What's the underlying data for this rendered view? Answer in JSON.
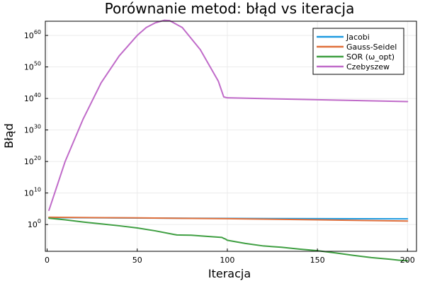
{
  "chart_data": {
    "type": "line",
    "title": "Porównanie metod: błąd vs iteracja",
    "xlabel": "Iteracja",
    "ylabel": "Błąd",
    "xlim": [
      -1,
      205
    ],
    "ylim_log10": [
      -8.5,
      64.5
    ],
    "y_scale": "log10",
    "grid": true,
    "legend_position": "top-right",
    "x_ticks": [
      0,
      50,
      100,
      150,
      200
    ],
    "y_ticks_exponents": [
      0,
      10,
      20,
      30,
      40,
      50,
      60
    ],
    "y_tick_base": "10",
    "series": [
      {
        "name": "Jacobi",
        "color": "#1f9be0",
        "points": [
          [
            1,
            2.2
          ],
          [
            50,
            2.05
          ],
          [
            100,
            1.95
          ],
          [
            150,
            1.85
          ],
          [
            200,
            1.8
          ]
        ]
      },
      {
        "name": "Gauss-Seidel",
        "color": "#e0703c",
        "points": [
          [
            1,
            2.3
          ],
          [
            50,
            2.1
          ],
          [
            100,
            1.85
          ],
          [
            150,
            1.5
          ],
          [
            200,
            1.1
          ]
        ]
      },
      {
        "name": "SOR (ω_opt)",
        "color": "#3f9f42",
        "points": [
          [
            1,
            2.0
          ],
          [
            10,
            1.5
          ],
          [
            20,
            0.8
          ],
          [
            30,
            0.2
          ],
          [
            40,
            -0.4
          ],
          [
            50,
            -1.1
          ],
          [
            60,
            -2.0
          ],
          [
            70,
            -3.1
          ],
          [
            72,
            -3.3
          ],
          [
            80,
            -3.4
          ],
          [
            90,
            -3.8
          ],
          [
            97,
            -4.1
          ],
          [
            98,
            -4.4
          ],
          [
            99,
            -4.6
          ],
          [
            100,
            -5.0
          ],
          [
            110,
            -6.0
          ],
          [
            120,
            -6.8
          ],
          [
            130,
            -7.2
          ],
          [
            140,
            -7.8
          ],
          [
            150,
            -8.3
          ],
          [
            160,
            -9.0
          ],
          [
            170,
            -9.8
          ],
          [
            180,
            -10.5
          ],
          [
            190,
            -11.0
          ],
          [
            195,
            -11.3
          ],
          [
            200,
            -11.5
          ]
        ]
      },
      {
        "name": "Czebyszew",
        "color": "#c06bc9",
        "points": [
          [
            1,
            4.5
          ],
          [
            10,
            20.0
          ],
          [
            20,
            33.5
          ],
          [
            30,
            45.0
          ],
          [
            40,
            53.5
          ],
          [
            50,
            60.0
          ],
          [
            55,
            62.5
          ],
          [
            60,
            64.0
          ],
          [
            65,
            64.8
          ],
          [
            68,
            64.7
          ],
          [
            75,
            62.5
          ],
          [
            85,
            55.5
          ],
          [
            95,
            45.5
          ],
          [
            98,
            40.5
          ],
          [
            100,
            40.2
          ],
          [
            150,
            39.6
          ],
          [
            200,
            39.0
          ]
        ]
      }
    ]
  }
}
